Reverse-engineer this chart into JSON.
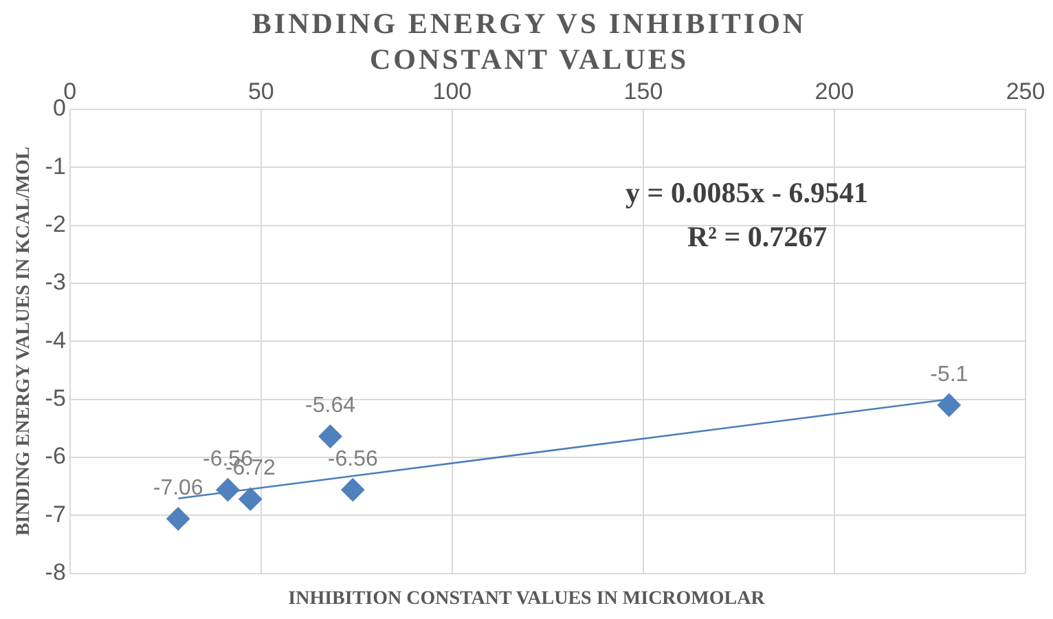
{
  "chart_data": {
    "type": "scatter",
    "title": "BINDING ENERGY VS INHIBITION CONSTANT VALUES",
    "xlabel": "INHIBITION CONSTANT VALUES IN MICROMOLAR",
    "ylabel": "BINDING ENERGY VALUES IN KCAL/MOL",
    "xlim": [
      0,
      250
    ],
    "xticks": [
      0,
      50,
      100,
      150,
      200,
      250
    ],
    "ylim": [
      -8,
      0
    ],
    "yticks": [
      -8,
      -7,
      -6,
      -5,
      -4,
      -3,
      -2,
      -1,
      0
    ],
    "grid": true,
    "legend": false,
    "series": [
      {
        "type": "scatter",
        "color": "#4f81bd",
        "marker": "diamond",
        "x": [
          28.3,
          41.3,
          47.2,
          68.1,
          74,
          230
        ],
        "values": [
          -7.06,
          -6.56,
          -6.72,
          -5.64,
          -6.56,
          -5.1
        ],
        "value_labels": [
          "-7.06",
          "-6.56",
          "-6.72",
          "-5.64",
          "-6.56",
          "-5.1"
        ]
      },
      {
        "type": "line",
        "color": "#4a7ebb",
        "marker": "none",
        "line_style": "solid",
        "x": [
          28.3,
          230
        ],
        "values": [
          -6.71,
          -5.0
        ]
      }
    ],
    "annotations": [
      "y = 0.0085x - 6.9541",
      "R² = 0.7267"
    ]
  }
}
